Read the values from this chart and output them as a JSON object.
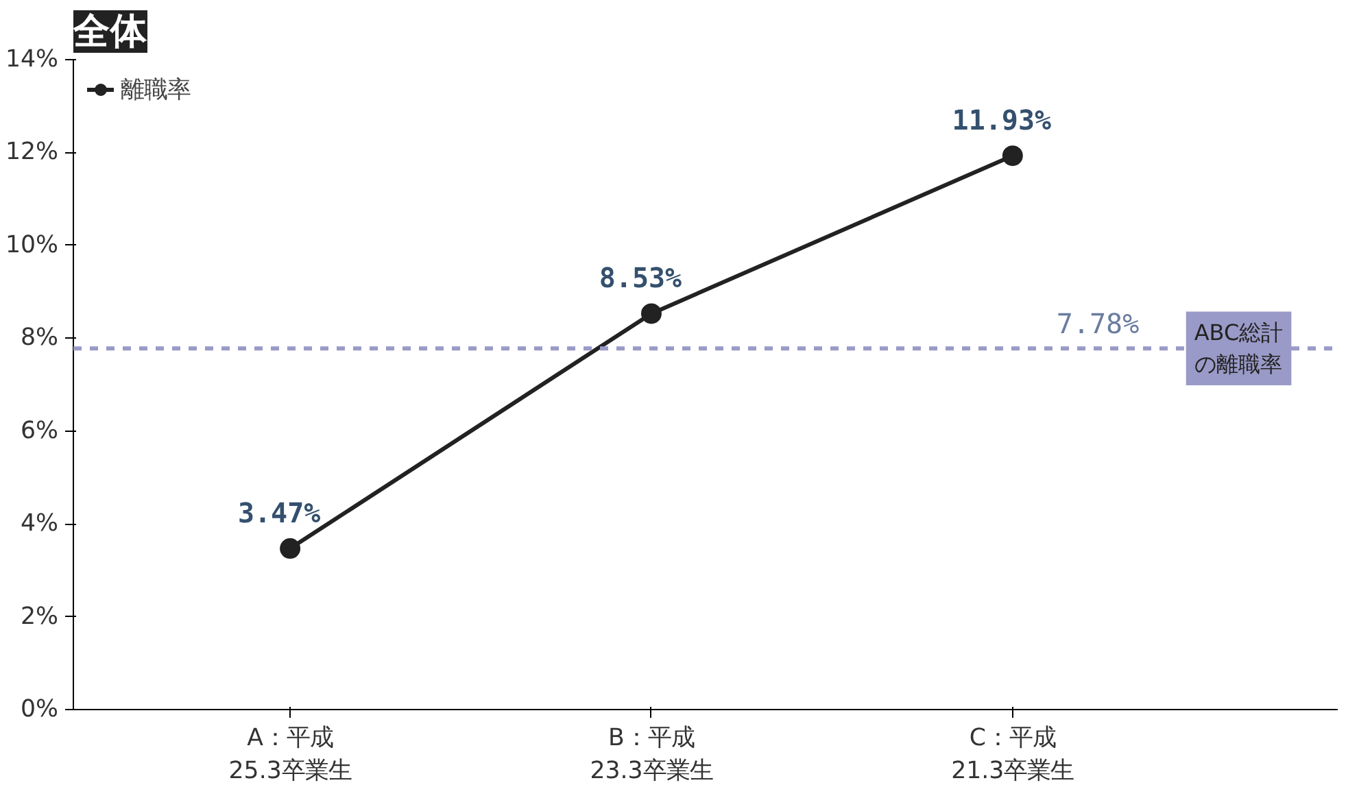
{
  "chart_data": {
    "type": "line",
    "title": "全体",
    "categories": [
      "A：平成\n25.3卒業生",
      "B：平成\n23.3卒業生",
      "C：平成\n21.3卒業生"
    ],
    "series": [
      {
        "name": "離職率",
        "color": "#222222",
        "values": [
          3.47,
          8.53,
          11.93
        ],
        "value_labels": [
          "3.47%",
          "8.53%",
          "11.93%"
        ]
      }
    ],
    "ylim": [
      0,
      14
    ],
    "yticks": [
      {
        "value": 0,
        "label": "0%"
      },
      {
        "value": 2,
        "label": "2%"
      },
      {
        "value": 4,
        "label": "4%"
      },
      {
        "value": 6,
        "label": "6%"
      },
      {
        "value": 8,
        "label": "8%"
      },
      {
        "value": 10,
        "label": "10%"
      },
      {
        "value": 12,
        "label": "12%"
      },
      {
        "value": 14,
        "label": "14%"
      }
    ],
    "ref_lines": [
      {
        "axis": "y",
        "value": 7.78,
        "label": "ABC総計の離職率",
        "color": "#9a9ac8",
        "line_style": "dashed"
      }
    ],
    "annotations": [
      {
        "text": "7.78%",
        "y": 7.78
      }
    ],
    "marker": "circle",
    "line_style": "solid",
    "grid": false,
    "legend": "top left"
  }
}
